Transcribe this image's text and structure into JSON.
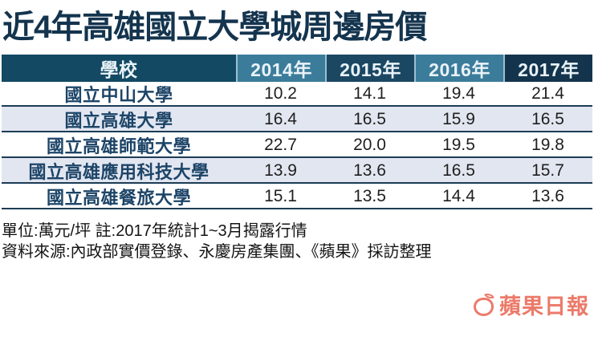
{
  "title": "近4年高雄國立大學城周邊房價",
  "table": {
    "school_header": "學校",
    "year_headers": [
      "2014年",
      "2015年",
      "2016年",
      "2017年"
    ],
    "unit": "萬元/坪",
    "rows": [
      {
        "school": "國立中山大學",
        "values": [
          "10.2",
          "14.1",
          "19.4",
          "21.4"
        ]
      },
      {
        "school": "國立高雄大學",
        "values": [
          "16.4",
          "16.5",
          "15.9",
          "16.5"
        ]
      },
      {
        "school": "國立高雄師範大學",
        "values": [
          "22.7",
          "20.0",
          "19.5",
          "19.8"
        ]
      },
      {
        "school": "國立高雄應用科技大學",
        "values": [
          "13.9",
          "13.6",
          "16.5",
          "15.7"
        ]
      },
      {
        "school": "國立高雄餐旅大學",
        "values": [
          "15.1",
          "13.5",
          "14.4",
          "13.6"
        ]
      }
    ]
  },
  "notes": {
    "unit_note": "單位:萬元/坪 註:2017年統計1~3月揭露行情",
    "source_note": "資料來源:內政部實價登錄、永慶房產集團、《蘋果》採訪整理"
  },
  "logo": {
    "text": "蘋果日報"
  },
  "colors": {
    "title": "#14344e",
    "header_school_bg": "#134963",
    "header_year_light_bg": "#3c7c9b",
    "header_year_dark_bg": "#1b4763",
    "header_year_darker_bg": "#14344d",
    "header_text": "#e9f3f8",
    "row_stripe_bg": "#e2e6f1",
    "row_border": "#1c3c55",
    "school_text": "#1c4467",
    "logo_red": "#e85a45"
  }
}
